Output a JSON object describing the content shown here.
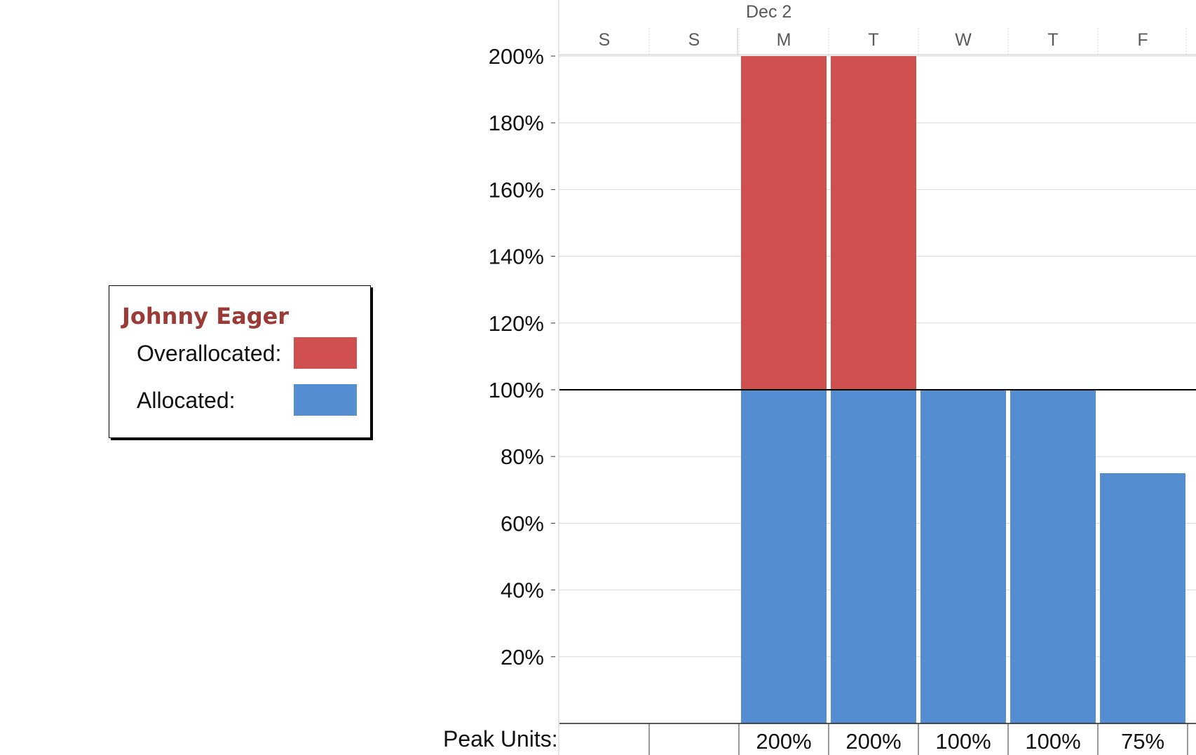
{
  "legend": {
    "resource_name": "Johnny Eager",
    "overallocated_label": "Overallocated:",
    "allocated_label": "Allocated:"
  },
  "timescale": {
    "week_label": "Dec 2",
    "days": [
      "S",
      "S",
      "M",
      "T",
      "W",
      "T",
      "F"
    ]
  },
  "peak_units": {
    "label": "Peak Units:",
    "values": [
      "",
      "",
      "200%",
      "200%",
      "100%",
      "100%",
      "75%"
    ]
  },
  "colors": {
    "allocated": "#558ed0",
    "overallocated": "#d05050",
    "resource_name": "#9a3b37",
    "gridline": "#d9d9d9",
    "max_units_line": "#000000"
  },
  "chart_data": {
    "type": "bar",
    "stacked": true,
    "categories": [
      "S",
      "S",
      "M",
      "T",
      "W",
      "T",
      "F"
    ],
    "series": [
      {
        "name": "Allocated:",
        "values": [
          0,
          0,
          100,
          100,
          100,
          100,
          75
        ]
      },
      {
        "name": "Overallocated:",
        "values": [
          0,
          0,
          100,
          100,
          0,
          0,
          0
        ]
      }
    ],
    "y_ticks": [
      "20%",
      "40%",
      "60%",
      "80%",
      "100%",
      "120%",
      "140%",
      "160%",
      "180%",
      "200%"
    ],
    "ylim": [
      0,
      200
    ],
    "max_units_line": 100,
    "grid": true,
    "legend_position": "left"
  }
}
